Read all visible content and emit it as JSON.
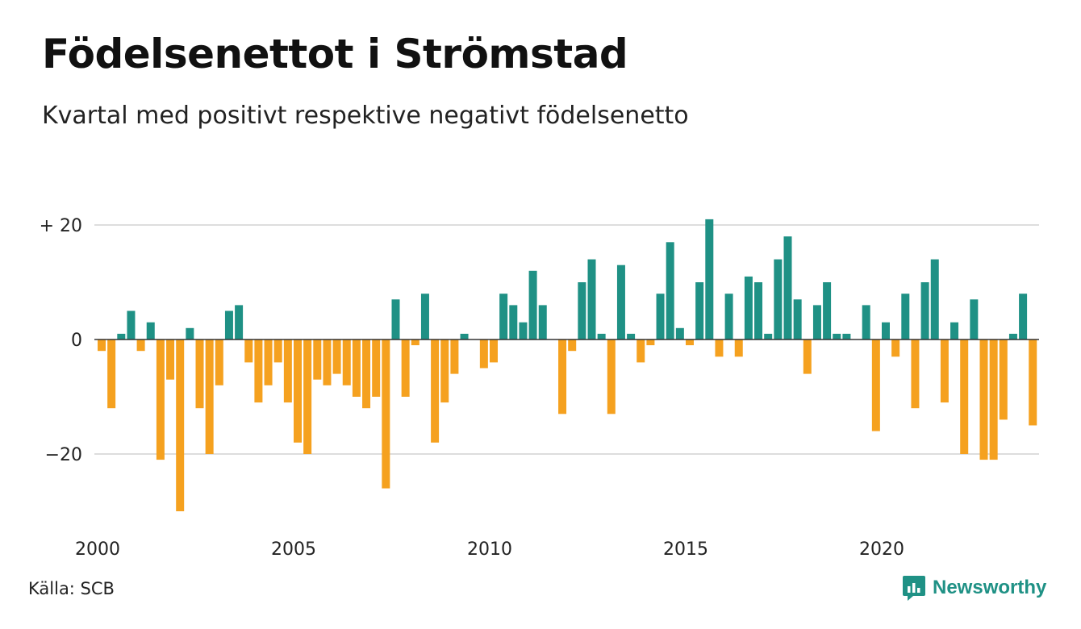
{
  "title": "Födelsenettot i Strömstad",
  "subtitle": "Kvartal med positivt respektive negativt födelsenetto",
  "source": "Källa: SCB",
  "brand": "Newsworthy",
  "colors": {
    "positive": "#1f9185",
    "negative": "#f5a11f",
    "grid": "#dddddd",
    "axis": "#333333"
  },
  "chart_data": {
    "type": "bar",
    "ylim": [
      -30,
      21
    ],
    "yticks": [
      {
        "value": 20,
        "label": "+ 20"
      },
      {
        "value": 0,
        "label": "0"
      },
      {
        "value": -20,
        "label": "−20"
      }
    ],
    "xticks": [
      {
        "value": 2000,
        "label": "2000"
      },
      {
        "value": 2005,
        "label": "2005"
      },
      {
        "value": 2010,
        "label": "2010"
      },
      {
        "value": 2015,
        "label": "2015"
      },
      {
        "value": 2020,
        "label": "2020"
      }
    ],
    "start_year": 2000,
    "frequency": "quarterly",
    "grid": true,
    "values": [
      -2,
      -12,
      1,
      5,
      -2,
      3,
      -21,
      -7,
      -30,
      2,
      -12,
      -20,
      -8,
      5,
      6,
      -4,
      -11,
      -8,
      -4,
      -11,
      -18,
      -20,
      -7,
      -8,
      -6,
      -8,
      -10,
      -12,
      -10,
      -26,
      7,
      -10,
      -1,
      8,
      -18,
      -11,
      -6,
      1,
      0,
      -5,
      -4,
      8,
      6,
      3,
      12,
      6,
      0,
      -13,
      -2,
      10,
      14,
      1,
      -13,
      13,
      1,
      -4,
      -1,
      8,
      17,
      2,
      -1,
      10,
      21,
      -3,
      8,
      -3,
      11,
      10,
      1,
      14,
      18,
      7,
      -6,
      6,
      10,
      1,
      1,
      0,
      6,
      -16,
      3,
      -3,
      8,
      -12,
      10,
      14,
      -11,
      3,
      -20,
      7,
      -21,
      -21,
      -14,
      1,
      8,
      -15
    ]
  }
}
